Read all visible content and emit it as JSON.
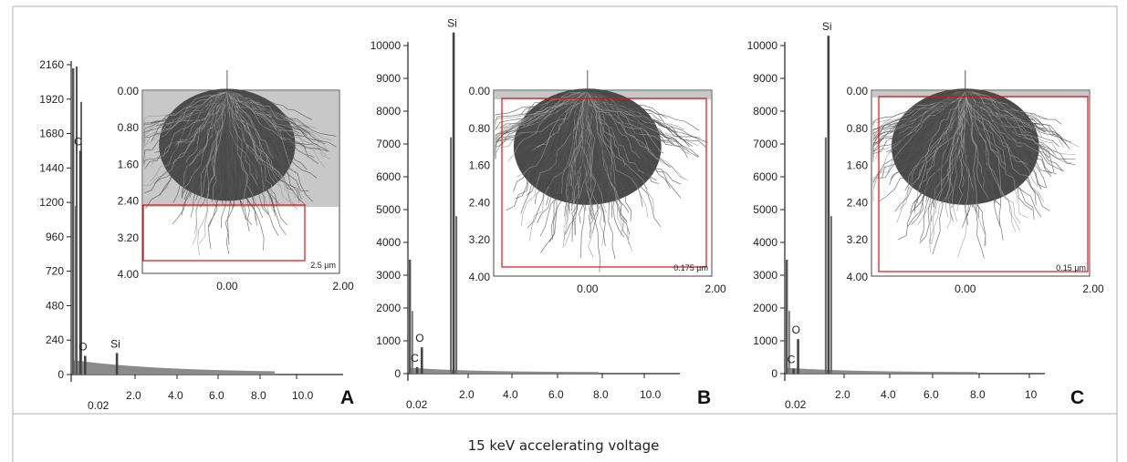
{
  "caption": "15 keV accelerating voltage",
  "chart_data": [
    {
      "type": "bar",
      "panel_label": "A",
      "x_ticks": [
        "0.02",
        "2.0",
        "4.0",
        "6.0",
        "8.0",
        "10.0"
      ],
      "y_ticks": [
        "0",
        "240",
        "480",
        "720",
        "960",
        "1200",
        "1440",
        "1680",
        "1920",
        "2160"
      ],
      "ylim": [
        0,
        2160
      ],
      "xlim": [
        0,
        10
      ],
      "peaks": [
        {
          "label": "C",
          "x": 0.28,
          "y": 1560
        },
        {
          "label": "O",
          "x": 0.53,
          "y": 130
        },
        {
          "label": "Si",
          "x": 1.74,
          "y": 150
        }
      ],
      "inset": {
        "x_ticks": [
          "0.00",
          "2.00"
        ],
        "y_ticks": [
          "0.00",
          "0.80",
          "1.60",
          "2.40",
          "3.20",
          "4.00"
        ],
        "scale_label": "2.5 µm"
      }
    },
    {
      "type": "bar",
      "panel_label": "B",
      "x_ticks": [
        "0.02",
        "2.0",
        "4.0",
        "6.0",
        "8.0",
        "10.0"
      ],
      "y_ticks": [
        "0",
        "1000",
        "2000",
        "3000",
        "4000",
        "5000",
        "6000",
        "7000",
        "8000",
        "9000",
        "10000"
      ],
      "ylim": [
        0,
        10000
      ],
      "xlim": [
        0,
        10
      ],
      "peaks": [
        {
          "label": "C",
          "x": 0.28,
          "y": 200
        },
        {
          "label": "O",
          "x": 0.53,
          "y": 800
        },
        {
          "label": "Si",
          "x": 1.74,
          "y": 10400
        }
      ],
      "inset": {
        "x_ticks": [
          "0.00",
          "2.00"
        ],
        "y_ticks": [
          "0.00",
          "0.80",
          "1.60",
          "2.40",
          "3.20",
          "4.00"
        ],
        "scale_label": "0.175 µm"
      }
    },
    {
      "type": "bar",
      "panel_label": "C",
      "x_ticks": [
        "0.02",
        "2.0",
        "4.0",
        "6.0",
        "8.0",
        "10"
      ],
      "y_ticks": [
        "0",
        "1000",
        "2000",
        "3000",
        "4000",
        "5000",
        "6000",
        "7000",
        "8000",
        "9000",
        "10000"
      ],
      "ylim": [
        0,
        10000
      ],
      "xlim": [
        0,
        10
      ],
      "peaks": [
        {
          "label": "C",
          "x": 0.28,
          "y": 150
        },
        {
          "label": "O",
          "x": 0.53,
          "y": 1050
        },
        {
          "label": "Si",
          "x": 1.74,
          "y": 10300
        }
      ],
      "inset": {
        "x_ticks": [
          "0.00",
          "2.00"
        ],
        "y_ticks": [
          "0.00",
          "0.80",
          "1.60",
          "2.40",
          "3.20",
          "4.00"
        ],
        "scale_label": "0.15 µm"
      }
    }
  ]
}
